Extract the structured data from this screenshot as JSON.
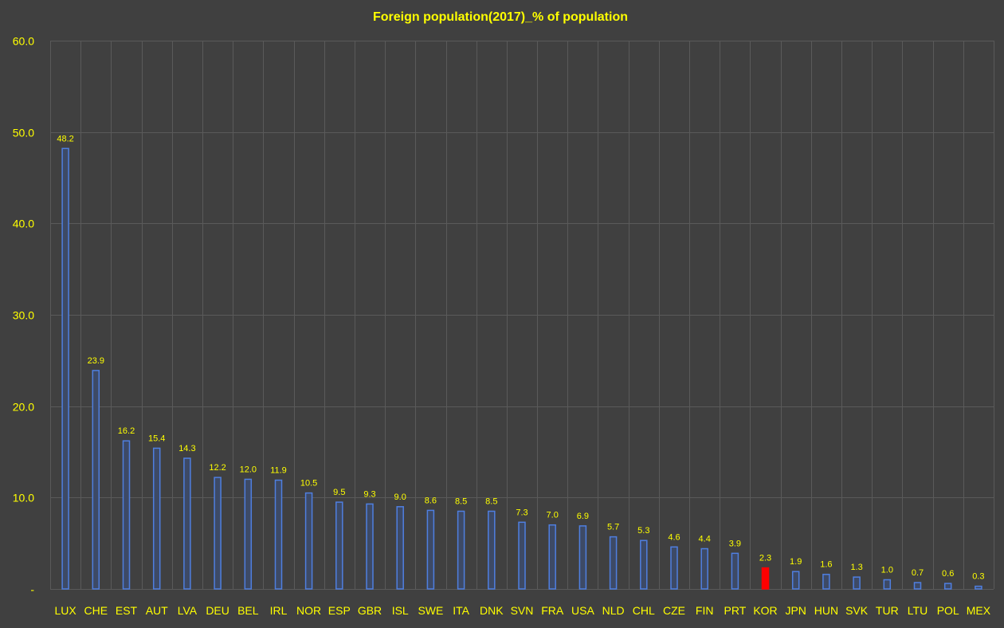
{
  "chart_data": {
    "type": "bar",
    "title": "Foreign population(2017)_% of population",
    "xlabel": "",
    "ylabel": "",
    "ylim": [
      0,
      60
    ],
    "yticks": [
      {
        "value": 0,
        "label": "-"
      },
      {
        "value": 10,
        "label": "10.0"
      },
      {
        "value": 20,
        "label": "20.0"
      },
      {
        "value": 30,
        "label": "30.0"
      },
      {
        "value": 40,
        "label": "40.0"
      },
      {
        "value": 50,
        "label": "50.0"
      },
      {
        "value": 60,
        "label": "60.0"
      }
    ],
    "grid": true,
    "categories": [
      "LUX",
      "CHE",
      "EST",
      "AUT",
      "LVA",
      "DEU",
      "BEL",
      "IRL",
      "NOR",
      "ESP",
      "GBR",
      "ISL",
      "SWE",
      "ITA",
      "DNK",
      "SVN",
      "FRA",
      "USA",
      "NLD",
      "CHL",
      "CZE",
      "FIN",
      "PRT",
      "KOR",
      "JPN",
      "HUN",
      "SVK",
      "TUR",
      "LTU",
      "POL",
      "MEX"
    ],
    "values": [
      48.2,
      23.9,
      16.2,
      15.4,
      14.3,
      12.2,
      12.0,
      11.9,
      10.5,
      9.5,
      9.3,
      9.0,
      8.6,
      8.5,
      8.5,
      7.3,
      7.0,
      6.9,
      5.7,
      5.3,
      4.6,
      4.4,
      3.9,
      2.3,
      1.9,
      1.6,
      1.3,
      1.0,
      0.7,
      0.6,
      0.3
    ],
    "data_labels": [
      "48.2",
      "23.9",
      "16.2",
      "15.4",
      "14.3",
      "12.2",
      "12.0",
      "11.9",
      "10.5",
      "9.5",
      "9.3",
      "9.0",
      "8.6",
      "8.5",
      "8.5",
      "7.3",
      "7.0",
      "6.9",
      "5.7",
      "5.3",
      "4.6",
      "4.4",
      "3.9",
      "2.3",
      "1.9",
      "1.6",
      "1.3",
      "1.0",
      "0.7",
      "0.6",
      "0.3"
    ],
    "highlight_category": "KOR",
    "colors": {
      "background": "#404040",
      "bar_fill": "#3d4a66",
      "bar_stroke": "#4f7fe0",
      "highlight_fill": "#ff0000",
      "text": "#ffff00",
      "grid": "#5a5a5a"
    }
  }
}
